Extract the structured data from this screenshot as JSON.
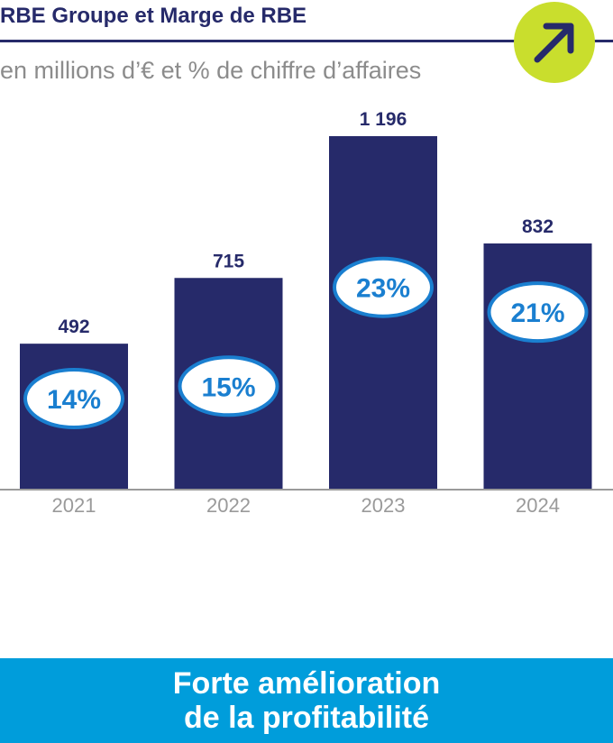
{
  "header": {
    "title": "RBE Groupe et Marge de RBE",
    "subtitle": "en millions d’€ et % de chiffre d’affaires",
    "badge_icon": "arrow-up-right-icon",
    "badge_color": "#c9de2d"
  },
  "chart_data": {
    "type": "bar",
    "categories": [
      "2021",
      "2022",
      "2023",
      "2024"
    ],
    "values": [
      492,
      715,
      1196,
      832
    ],
    "value_labels": [
      "492",
      "715",
      "1 196",
      "832"
    ],
    "margin_labels": [
      "14%",
      "15%",
      "23%",
      "21%"
    ],
    "margins": [
      14,
      15,
      23,
      21
    ],
    "title": "RBE Groupe et Marge de RBE",
    "subtitle": "en millions d’€ et % de chiffre d’affaires",
    "ylim": [
      0,
      1196
    ],
    "grid": false,
    "bar_color": "#262a6a",
    "ellipse_color": "#1a7fd0"
  },
  "footer": {
    "line1": "Forte amélioration",
    "line2": "de la profitabilité"
  }
}
